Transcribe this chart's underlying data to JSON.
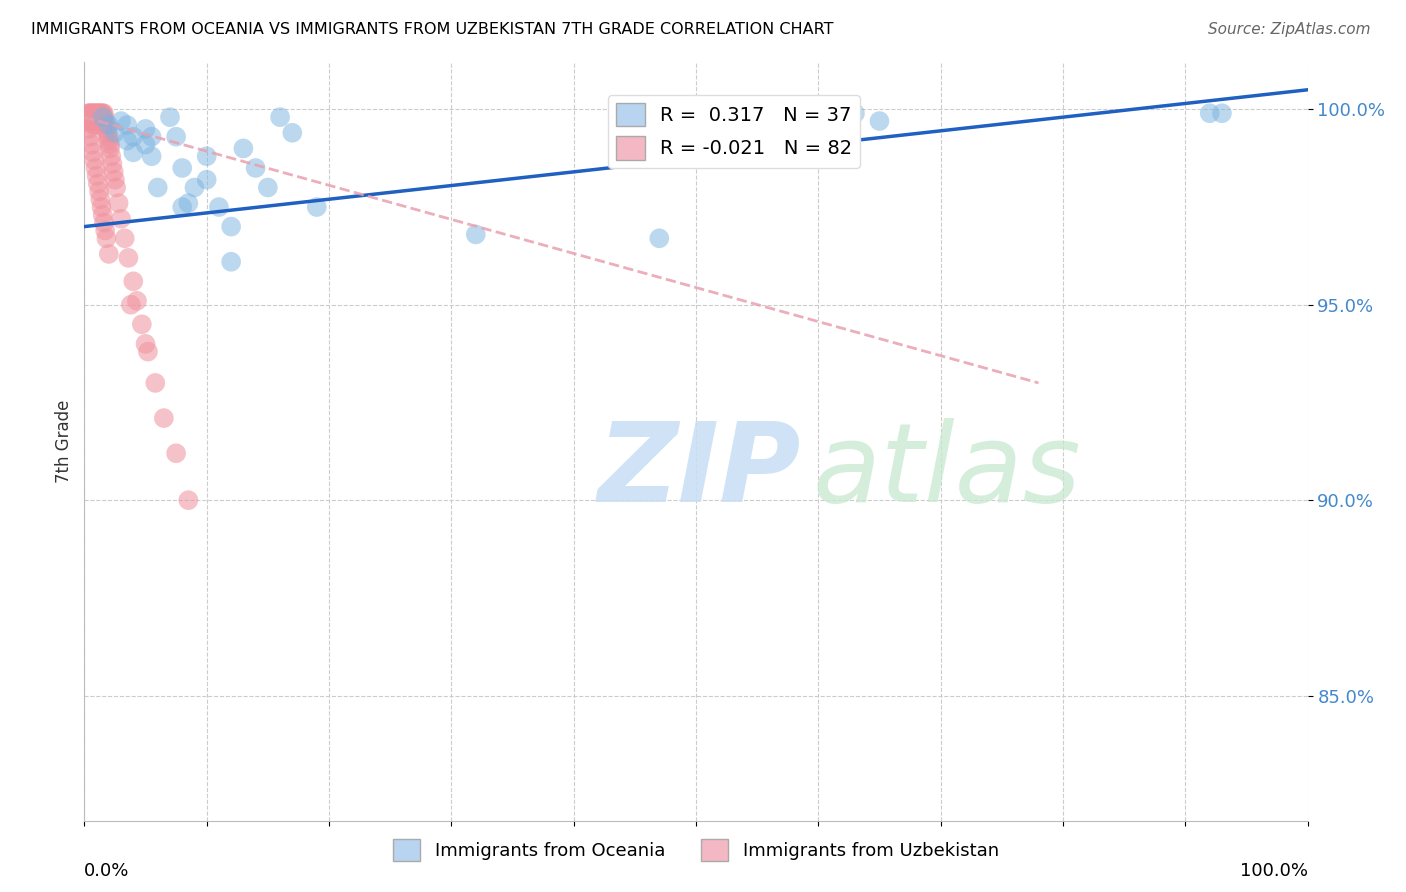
{
  "title": "IMMIGRANTS FROM OCEANIA VS IMMIGRANTS FROM UZBEKISTAN 7TH GRADE CORRELATION CHART",
  "source": "Source: ZipAtlas.com",
  "ylabel": "7th Grade",
  "xlim": [
    0.0,
    1.0
  ],
  "ylim": [
    0.818,
    1.012
  ],
  "ytick_vals": [
    0.85,
    0.9,
    0.95,
    1.0
  ],
  "ytick_labels": [
    "85.0%",
    "90.0%",
    "95.0%",
    "100.0%"
  ],
  "blue_color": "#7ab3e0",
  "pink_color": "#f0919e",
  "blue_line_color": "#2060c0",
  "pink_line_color": "#e8a0ae",
  "legend_blue_color": "#b8d4f0",
  "legend_pink_color": "#f4b8c4",
  "legend_blue_label": "R =  0.317   N = 37",
  "legend_pink_label": "R = -0.021   N = 82",
  "blue_trendline_x": [
    0.0,
    1.0
  ],
  "blue_trendline_y": [
    0.97,
    1.005
  ],
  "pink_trendline_x": [
    0.0,
    0.78
  ],
  "pink_trendline_y": [
    0.998,
    0.93
  ],
  "oceania_x": [
    0.015,
    0.02,
    0.025,
    0.03,
    0.035,
    0.035,
    0.04,
    0.04,
    0.05,
    0.05,
    0.055,
    0.055,
    0.06,
    0.07,
    0.075,
    0.08,
    0.085,
    0.09,
    0.1,
    0.11,
    0.12,
    0.13,
    0.14,
    0.15,
    0.16,
    0.17,
    0.6,
    0.63,
    0.65,
    0.92,
    0.93,
    0.08,
    0.1,
    0.12,
    0.19,
    0.32,
    0.47
  ],
  "oceania_y": [
    0.998,
    0.996,
    0.994,
    0.997,
    0.992,
    0.996,
    0.989,
    0.993,
    0.991,
    0.995,
    0.988,
    0.993,
    0.98,
    0.998,
    0.993,
    0.985,
    0.976,
    0.98,
    0.988,
    0.975,
    0.97,
    0.99,
    0.985,
    0.98,
    0.998,
    0.994,
    0.998,
    0.999,
    0.997,
    0.999,
    0.999,
    0.975,
    0.982,
    0.961,
    0.975,
    0.968,
    0.967
  ],
  "uzbekistan_x": [
    0.003,
    0.004,
    0.004,
    0.005,
    0.005,
    0.005,
    0.006,
    0.006,
    0.006,
    0.007,
    0.007,
    0.007,
    0.007,
    0.008,
    0.008,
    0.008,
    0.009,
    0.009,
    0.009,
    0.009,
    0.01,
    0.01,
    0.01,
    0.011,
    0.011,
    0.011,
    0.012,
    0.012,
    0.013,
    0.013,
    0.013,
    0.014,
    0.014,
    0.015,
    0.015,
    0.016,
    0.016,
    0.017,
    0.017,
    0.018,
    0.018,
    0.019,
    0.02,
    0.02,
    0.021,
    0.021,
    0.022,
    0.023,
    0.024,
    0.025,
    0.026,
    0.028,
    0.03,
    0.033,
    0.036,
    0.04,
    0.043,
    0.047,
    0.052,
    0.058,
    0.065,
    0.075,
    0.085,
    0.003,
    0.004,
    0.005,
    0.006,
    0.007,
    0.008,
    0.009,
    0.01,
    0.011,
    0.012,
    0.013,
    0.014,
    0.015,
    0.016,
    0.017,
    0.018,
    0.02,
    0.038,
    0.05
  ],
  "uzbekistan_y": [
    0.999,
    0.999,
    0.998,
    0.999,
    0.998,
    0.997,
    0.999,
    0.998,
    0.997,
    0.999,
    0.998,
    0.997,
    0.996,
    0.999,
    0.998,
    0.997,
    0.999,
    0.998,
    0.997,
    0.996,
    0.999,
    0.998,
    0.997,
    0.999,
    0.998,
    0.997,
    0.999,
    0.998,
    0.999,
    0.998,
    0.997,
    0.999,
    0.998,
    0.999,
    0.997,
    0.999,
    0.998,
    0.997,
    0.996,
    0.996,
    0.995,
    0.994,
    0.993,
    0.992,
    0.991,
    0.99,
    0.988,
    0.986,
    0.984,
    0.982,
    0.98,
    0.976,
    0.972,
    0.967,
    0.962,
    0.956,
    0.951,
    0.945,
    0.938,
    0.93,
    0.921,
    0.912,
    0.9,
    0.997,
    0.995,
    0.993,
    0.991,
    0.989,
    0.987,
    0.985,
    0.983,
    0.981,
    0.979,
    0.977,
    0.975,
    0.973,
    0.971,
    0.969,
    0.967,
    0.963,
    0.95,
    0.94
  ]
}
